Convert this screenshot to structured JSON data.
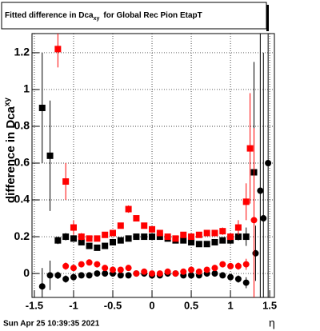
{
  "chart_data": {
    "type": "errorbar",
    "title": "Fitted difference in Dca",
    "title_subscript": "xy",
    "title_suffix": "for Global Rec Pion EtapT",
    "y_label": "difference in Dca",
    "y_label_subscript": "xy",
    "x_label": "η",
    "footer": "Sun Apr 25 10:39:35 2021",
    "xlim": [
      -1.53,
      1.56
    ],
    "ylim": [
      -0.13,
      1.304
    ],
    "xticks": [
      -1.5,
      -1,
      -0.5,
      0,
      0.5,
      1,
      1.5
    ],
    "yticks": [
      0,
      0.2,
      0.4,
      0.6,
      0.8,
      1,
      1.2
    ],
    "grid": true,
    "series": [
      {
        "color": "#000000",
        "marker": "square",
        "x": [
          -1.4,
          -1.3,
          -1.2,
          -1.1,
          -1.0,
          -0.9,
          -0.8,
          -0.7,
          -0.6,
          -0.5,
          -0.4,
          -0.3,
          -0.2,
          -0.1,
          0,
          0.1,
          0.2,
          0.3,
          0.4,
          0.5,
          0.6,
          0.7,
          0.8,
          0.9,
          1.0,
          1.1,
          1.2,
          1.3
        ],
        "values": [
          0.9,
          0.64,
          0.18,
          0.2,
          0.19,
          0.17,
          0.15,
          0.14,
          0.15,
          0.17,
          0.18,
          0.19,
          0.2,
          0.2,
          0.2,
          0.2,
          0.19,
          0.18,
          0.18,
          0.17,
          0.16,
          0.16,
          0.17,
          0.18,
          0.18,
          0.2,
          0.2,
          0.55
        ],
        "errors": [
          0.3,
          0.3,
          0.02,
          0.02,
          0.01,
          0.01,
          0.01,
          0.01,
          0.01,
          0.01,
          0.01,
          0.01,
          0.01,
          0.01,
          0.01,
          0.01,
          0.01,
          0.01,
          0.01,
          0.01,
          0.01,
          0.01,
          0.01,
          0.01,
          0.02,
          0.02,
          0.05,
          0.6
        ]
      },
      {
        "color": "#ff0000",
        "marker": "square",
        "x": [
          -1.2,
          -1.1,
          -1.0,
          -0.9,
          -0.8,
          -0.7,
          -0.6,
          -0.5,
          -0.4,
          -0.3,
          -0.2,
          -0.1,
          0,
          0.1,
          0.2,
          0.3,
          0.4,
          0.5,
          0.6,
          0.7,
          0.8,
          0.9,
          1.0,
          1.1,
          1.2,
          1.25
        ],
        "values": [
          1.22,
          0.5,
          0.25,
          0.2,
          0.19,
          0.19,
          0.21,
          0.22,
          0.26,
          0.35,
          0.3,
          0.26,
          0.24,
          0.22,
          0.2,
          0.19,
          0.21,
          0.2,
          0.21,
          0.22,
          0.22,
          0.23,
          0.2,
          0.25,
          0.39,
          0.68
        ],
        "errors": [
          0.1,
          0.1,
          0.04,
          0.02,
          0.01,
          0.01,
          0.01,
          0.01,
          0.01,
          0.02,
          0.01,
          0.01,
          0.01,
          0.01,
          0.01,
          0.01,
          0.01,
          0.01,
          0.01,
          0.01,
          0.01,
          0.02,
          0.02,
          0.04,
          0.1,
          0.3
        ]
      },
      {
        "color": "#000000",
        "marker": "circle",
        "x": [
          -1.4,
          -1.3,
          -1.2,
          -1.1,
          -1.0,
          -0.9,
          -0.8,
          -0.7,
          -0.6,
          -0.5,
          -0.4,
          -0.3,
          -0.2,
          -0.1,
          0,
          0.1,
          0.2,
          0.3,
          0.4,
          0.5,
          0.6,
          0.7,
          0.8,
          0.9,
          1.0,
          1.1,
          1.2,
          1.32,
          1.38,
          1.42,
          1.48
        ],
        "values": [
          -0.07,
          -0.01,
          -0.01,
          -0.03,
          -0.02,
          -0.01,
          -0.01,
          0,
          0,
          0,
          -0.01,
          -0.01,
          0,
          0,
          -0.01,
          -0.01,
          0,
          0,
          -0.01,
          -0.01,
          -0.01,
          0,
          0,
          -0.01,
          -0.02,
          -0.03,
          -0.05,
          0.11,
          0.45,
          0.3,
          0.6
        ],
        "errors": [
          0.1,
          0.08,
          0.02,
          0.02,
          0.01,
          0.01,
          0.01,
          0.01,
          0.01,
          0.01,
          0.01,
          0.01,
          0.01,
          0.01,
          0.01,
          0.01,
          0.01,
          0.01,
          0.01,
          0.01,
          0.01,
          0.01,
          0.01,
          0.01,
          0.01,
          0.02,
          0.03,
          0.15,
          0.9,
          0.9,
          0.9
        ]
      },
      {
        "color": "#ff0000",
        "marker": "circle",
        "x": [
          -1.1,
          -1.0,
          -0.9,
          -0.8,
          -0.7,
          -0.6,
          -0.5,
          -0.4,
          -0.3,
          -0.2,
          -0.1,
          0,
          0.1,
          0.2,
          0.3,
          0.4,
          0.5,
          0.6,
          0.7,
          0.8,
          0.9,
          1.0,
          1.1,
          1.2,
          1.3
        ],
        "values": [
          0.04,
          0.03,
          0.05,
          0.06,
          0.05,
          0.03,
          0.02,
          0.02,
          0.03,
          0,
          0.01,
          0,
          0,
          0.01,
          0,
          0.01,
          0.02,
          0.01,
          0.02,
          0.03,
          0.05,
          0.04,
          0.04,
          0.05,
          0.29
        ],
        "errors": [
          0.02,
          0.01,
          0.01,
          0.01,
          0.01,
          0.01,
          0.01,
          0.01,
          0.01,
          0.01,
          0.01,
          0.01,
          0.01,
          0.01,
          0.01,
          0.01,
          0.01,
          0.01,
          0.01,
          0.01,
          0.01,
          0.01,
          0.02,
          0.03,
          0.5
        ]
      }
    ]
  }
}
